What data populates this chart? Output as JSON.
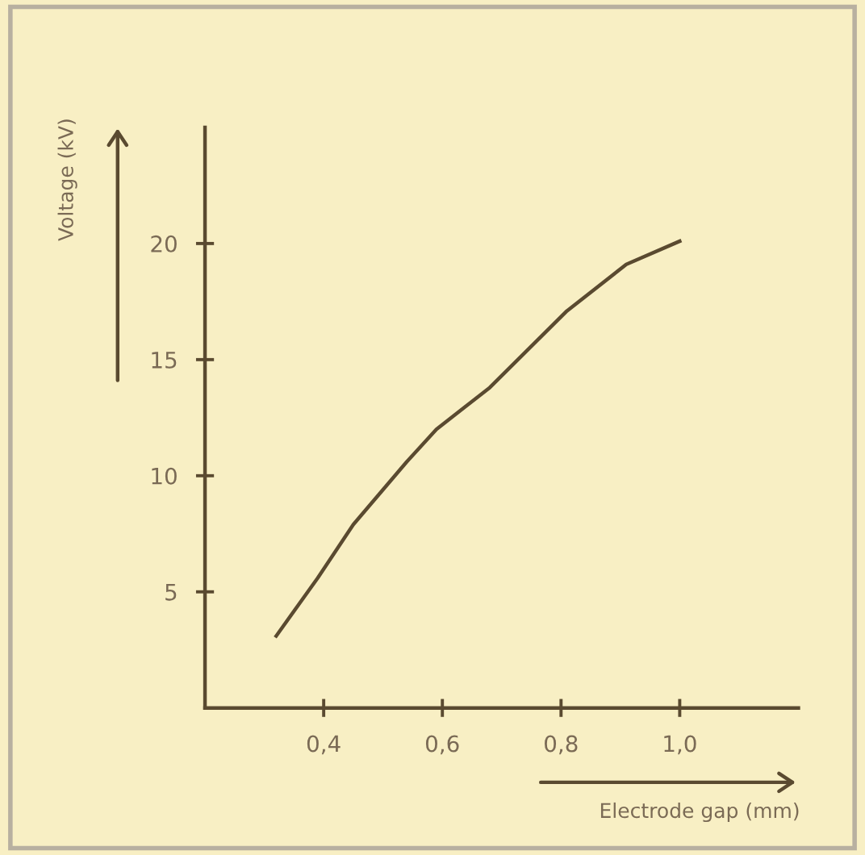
{
  "chart_data": {
    "type": "line",
    "xlabel": "Electrode gap (mm)",
    "ylabel": "Voltage (kV)",
    "x": [
      0.32,
      0.39,
      0.45,
      0.54,
      0.59,
      0.68,
      0.81,
      0.91,
      1.0
    ],
    "series": [
      {
        "color": "#5a4a30",
        "values": [
          3.1,
          5.6,
          7.9,
          10.6,
          12.0,
          13.8,
          17.1,
          19.1,
          20.1
        ]
      }
    ],
    "xlim": [
      0.2,
      1.2
    ],
    "ylim": [
      0,
      25
    ],
    "xticks": [
      {
        "value": 0.4,
        "label": "0,4"
      },
      {
        "value": 0.6,
        "label": "0,6"
      },
      {
        "value": 0.8,
        "label": "0,8"
      },
      {
        "value": 1.0,
        "label": "1,0"
      }
    ],
    "yticks": [
      5,
      10,
      15,
      20
    ],
    "grid": false,
    "legend": false,
    "marker": "none",
    "line_style": "solid"
  }
}
